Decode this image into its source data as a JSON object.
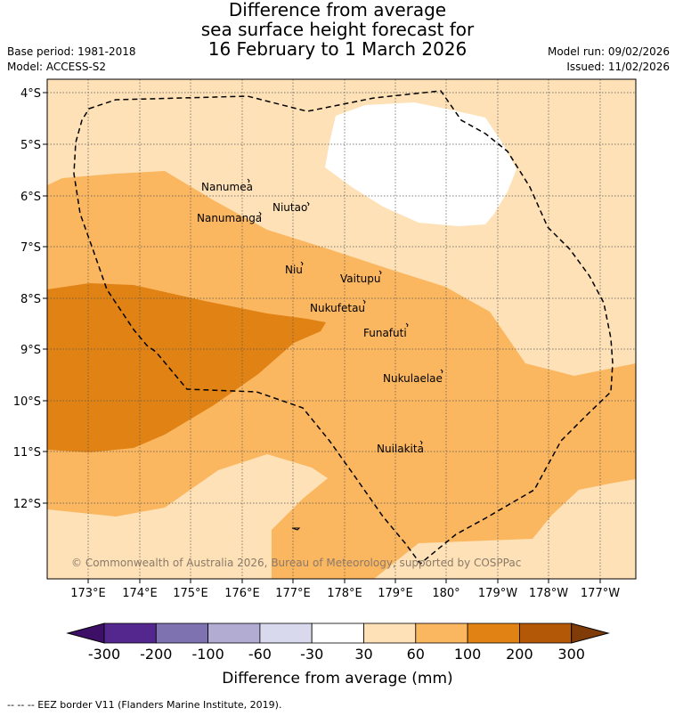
{
  "title": {
    "line1": "Difference from average",
    "line2": "sea surface height forecast for",
    "line3": "16 February to 1 March 2026"
  },
  "meta": {
    "base_period": "Base period: 1981-2018",
    "model": "Model: ACCESS-S2",
    "model_run": "Model run: 09/02/2026",
    "issued": "Issued: 11/02/2026"
  },
  "map": {
    "lat_labels": [
      "4°S",
      "5°S",
      "6°S",
      "7°S",
      "8°S",
      "9°S",
      "10°S",
      "11°S",
      "12°S"
    ],
    "lon_labels": [
      "173°E",
      "174°E",
      "175°E",
      "176°E",
      "177°E",
      "178°E",
      "179°E",
      "180°",
      "179°W",
      "178°W",
      "177°W"
    ],
    "places": [
      {
        "name": "Nanumea"
      },
      {
        "name": "Niutao"
      },
      {
        "name": "Nanumanga"
      },
      {
        "name": "Niu"
      },
      {
        "name": "Vaitupu"
      },
      {
        "name": "Nukufetau"
      },
      {
        "name": "Funafuti"
      },
      {
        "name": "Nukulaelae"
      },
      {
        "name": "Nuilakita"
      }
    ],
    "copyright": "© Commonwealth of Australia 2026, Bureau of Meteorology, supported by COSPPac"
  },
  "legend": {
    "ticks": [
      "-300",
      "-200",
      "-100",
      "-60",
      "-30",
      "30",
      "60",
      "100",
      "200",
      "300"
    ],
    "label": "Difference from average (mm)",
    "colors": [
      "#3d0f66",
      "#54278f",
      "#7e72b0",
      "#b2abd2",
      "#d8d9ec",
      "#ffffff",
      "#fee1b6",
      "#fbb660",
      "#e08214",
      "#b35806",
      "#7f3b08"
    ]
  },
  "footer": "--  --  -- EEZ border V11 (Flanders Marine Institute, 2019)."
}
